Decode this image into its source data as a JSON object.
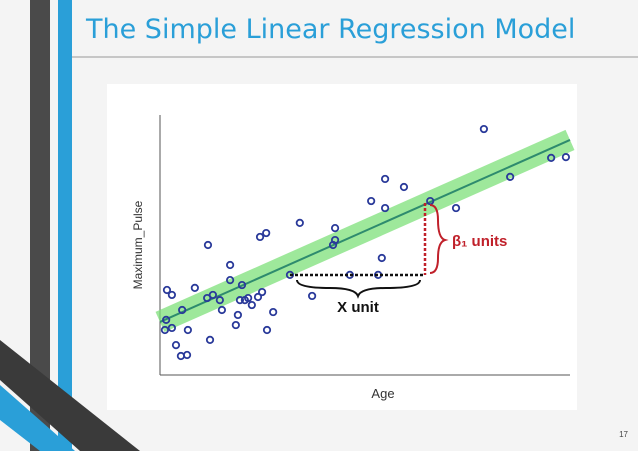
{
  "title": "The Simple Linear Regression Model",
  "page_number": "17",
  "chart_data": {
    "type": "scatter",
    "x_label": "Age",
    "y_label": "Maximum_Pulse",
    "annotations": {
      "slope": "β₁ units",
      "run": "X unit"
    },
    "xlim": [
      0,
      100
    ],
    "ylim": [
      0,
      100
    ],
    "color": "#2a3a9a",
    "x": [
      1.7,
      2.9,
      1.5,
      2.9,
      1.2,
      5.4,
      3.9,
      5.1,
      6.6,
      6.8,
      8.5,
      11.5,
      11.7,
      12.9,
      12.2,
      14.6,
      15.1,
      17.1,
      17.1,
      18.5,
      19,
      19.5,
      20,
      20.7,
      21.5,
      22.4,
      23.9,
      24.9,
      24.4,
      25.9,
      26.1,
      27.6,
      31.7,
      34.1,
      37.1,
      42.2,
      42.7,
      42.7,
      46.3,
      51.5,
      53.2,
      54.1,
      54.9,
      54.9,
      59.5,
      65.9,
      72.2,
      79,
      85.4,
      95.4,
      99
    ],
    "values": [
      32.7,
      30.8,
      21.2,
      18.1,
      17.3,
      25,
      11.5,
      7.3,
      7.7,
      17.3,
      33.5,
      29.6,
      50,
      30.8,
      13.5,
      28.8,
      25,
      42.3,
      36.5,
      19.2,
      23.1,
      28.8,
      34.6,
      28.8,
      29.6,
      26.9,
      30,
      31.9,
      53.1,
      54.6,
      17.3,
      24.2,
      38.5,
      58.5,
      30.4,
      50,
      51.9,
      56.5,
      38.5,
      66.9,
      38.5,
      45,
      75.4,
      64.2,
      72.3,
      66.9,
      64.2,
      94.6,
      76.2,
      83.5,
      83.8
    ],
    "fit_line": {
      "x": [
        0,
        100
      ],
      "values": [
        20.4,
        90.4
      ],
      "color": "#2e8b6e"
    }
  }
}
